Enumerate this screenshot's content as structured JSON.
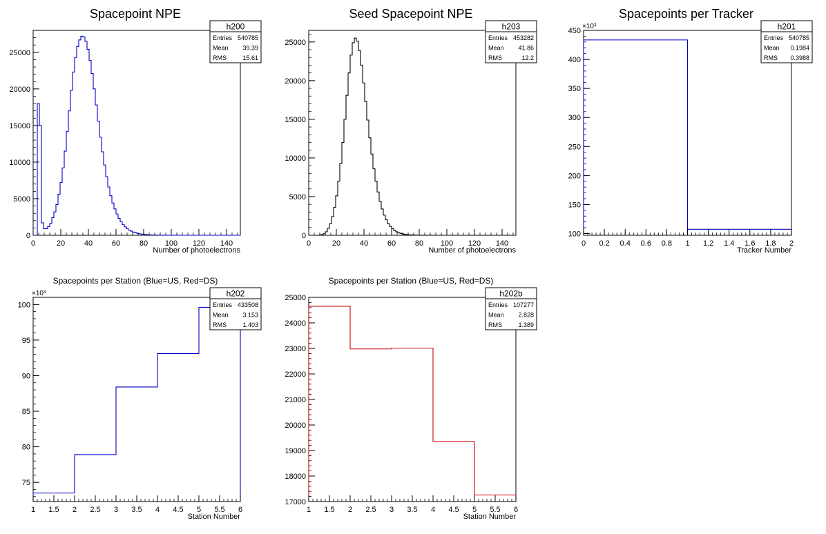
{
  "chart_data": [
    {
      "type": "bar",
      "title": "Spacepoint NPE",
      "xlabel": "Number of photoelectrons",
      "ylabel": "",
      "xlim": [
        0,
        150
      ],
      "ylim": [
        0,
        28000
      ],
      "xticks": [
        "0",
        "20",
        "40",
        "60",
        "80",
        "100",
        "120",
        "140"
      ],
      "yticks": [
        "0",
        "5000",
        "10000",
        "15000",
        "20000",
        "25000"
      ],
      "exponent": "",
      "color": "#0000cc",
      "stats": {
        "name": "h200",
        "rows": [
          [
            "Entries",
            "540785"
          ],
          [
            "Mean",
            "39.39"
          ],
          [
            "RMS",
            "15.61"
          ]
        ]
      },
      "bins": {
        "x0": 0,
        "width": 1.5
      },
      "values": [
        0,
        0,
        18000,
        15000,
        1700,
        900,
        900,
        1200,
        1600,
        2400,
        3200,
        4200,
        5600,
        7200,
        9200,
        11500,
        14200,
        17000,
        19800,
        22300,
        24300,
        25800,
        26700,
        27200,
        27100,
        26500,
        25400,
        23900,
        22100,
        20000,
        17800,
        15600,
        13400,
        11400,
        9600,
        8000,
        6600,
        5400,
        4400,
        3600,
        2900,
        2300,
        1850,
        1450,
        1150,
        900,
        700,
        560,
        430,
        340,
        260,
        200,
        160,
        120,
        95,
        75,
        60,
        45,
        35,
        28,
        22,
        18,
        14,
        11,
        9,
        7,
        5,
        4,
        3,
        2,
        2,
        1,
        1,
        1,
        1,
        0,
        0,
        0,
        0,
        0,
        0,
        0,
        0,
        0,
        0,
        0,
        0,
        0,
        0,
        0,
        0,
        0,
        0,
        0,
        0,
        0,
        0,
        0,
        0,
        0
      ]
    },
    {
      "type": "bar",
      "title": "Seed Spacepoint NPE",
      "xlabel": "Number of photoelectrons",
      "ylabel": "",
      "xlim": [
        0,
        150
      ],
      "ylim": [
        0,
        26500
      ],
      "xticks": [
        "0",
        "20",
        "40",
        "60",
        "80",
        "100",
        "120",
        "140"
      ],
      "yticks": [
        "0",
        "5000",
        "10000",
        "15000",
        "20000",
        "25000"
      ],
      "exponent": "",
      "color": "#000000",
      "stats": {
        "name": "h203",
        "rows": [
          [
            "Entries",
            "453282"
          ],
          [
            "Mean",
            "41.86"
          ],
          [
            "RMS",
            "12.2"
          ]
        ]
      },
      "bins": {
        "x0": 0,
        "width": 1.5
      },
      "values": [
        0,
        0,
        0,
        0,
        0,
        30,
        80,
        200,
        450,
        900,
        1500,
        2400,
        3600,
        5100,
        7000,
        9300,
        12000,
        15000,
        18100,
        21000,
        23300,
        24900,
        25500,
        25100,
        23900,
        22000,
        19700,
        17300,
        14900,
        12600,
        10500,
        8600,
        7000,
        5600,
        4400,
        3400,
        2600,
        2000,
        1500,
        1150,
        850,
        620,
        450,
        330,
        240,
        170,
        120,
        90,
        65,
        48,
        35,
        26,
        19,
        14,
        10,
        7,
        5,
        4,
        3,
        2,
        1,
        1,
        1,
        0,
        0,
        0,
        0,
        0,
        0,
        0,
        0,
        0,
        0,
        0,
        0,
        0,
        0,
        0,
        0,
        0,
        0,
        0,
        0,
        0,
        0,
        0,
        0,
        0,
        0,
        0,
        0,
        0,
        0,
        0,
        0,
        0,
        0,
        0,
        0,
        0
      ]
    },
    {
      "type": "bar",
      "title": "Spacepoints per Tracker",
      "xlabel": "Tracker Number",
      "ylabel": "",
      "xlim": [
        0,
        2
      ],
      "ylim": [
        97,
        450
      ],
      "xticks": [
        "0",
        "0.2",
        "0.4",
        "0.6",
        "0.8",
        "1",
        "1.2",
        "1.4",
        "1.6",
        "1.8",
        "2"
      ],
      "yticks": [
        "100",
        "150",
        "200",
        "250",
        "300",
        "350",
        "400",
        "450"
      ],
      "exponent": "×10³",
      "color": "#0000cc",
      "stats": {
        "name": "h201",
        "rows": [
          [
            "Entries",
            "540785"
          ],
          [
            "Mean",
            "0.1984"
          ],
          [
            "RMS",
            "0.3988"
          ]
        ]
      },
      "bins": {
        "x0": 0,
        "width": 1
      },
      "values": [
        433.5,
        107.3
      ]
    },
    {
      "type": "bar",
      "title": "Spacepoints per Station (Blue=US, Red=DS)",
      "xlabel": "Station Number",
      "ylabel": "",
      "xlim": [
        1,
        6
      ],
      "ylim": [
        72.3,
        101
      ],
      "xticks": [
        "1",
        "1.5",
        "2",
        "2.5",
        "3",
        "3.5",
        "4",
        "4.5",
        "5",
        "5.5",
        "6"
      ],
      "yticks": [
        "75",
        "80",
        "85",
        "90",
        "95",
        "100"
      ],
      "exponent": "×10³",
      "color": "#0000cc",
      "stats": {
        "name": "h202",
        "rows": [
          [
            "Entries",
            "433508"
          ],
          [
            "Mean",
            "3.153"
          ],
          [
            "RMS",
            "1.403"
          ]
        ]
      },
      "bins": {
        "x0": 1,
        "width": 1
      },
      "values": [
        73.5,
        78.9,
        88.4,
        93.1,
        99.6
      ]
    },
    {
      "type": "bar",
      "title": "Spacepoints per Station (Blue=US, Red=DS)",
      "xlabel": "Station Number",
      "ylabel": "",
      "xlim": [
        1,
        6
      ],
      "ylim": [
        17000,
        25000
      ],
      "xticks": [
        "1",
        "1.5",
        "2",
        "2.5",
        "3",
        "3.5",
        "4",
        "4.5",
        "5",
        "5.5",
        "6"
      ],
      "yticks": [
        "17000",
        "18000",
        "19000",
        "20000",
        "21000",
        "22000",
        "23000",
        "24000",
        "25000"
      ],
      "exponent": "",
      "color": "#cc0000",
      "stats": {
        "name": "h202b",
        "rows": [
          [
            "Entries",
            "107277"
          ],
          [
            "Mean",
            "2.828"
          ],
          [
            "RMS",
            "1.389"
          ]
        ]
      },
      "bins": {
        "x0": 1,
        "width": 1
      },
      "values": [
        24650,
        22980,
        23010,
        19350,
        17260
      ]
    }
  ]
}
